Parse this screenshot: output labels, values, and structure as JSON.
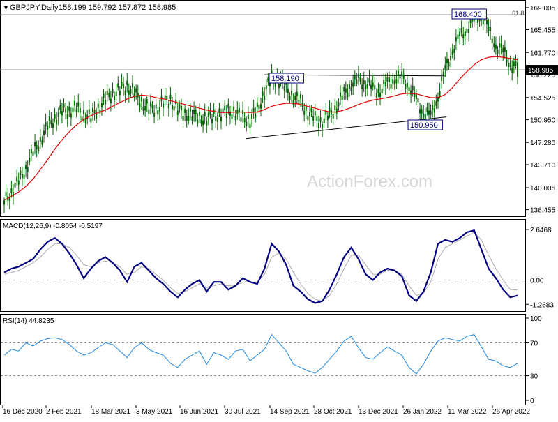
{
  "header": {
    "symbol_label": "GBPJPY,Daily",
    "ohlc_text": "158.199 159.792 157.872 158.985",
    "watermark": "ActionForex.com"
  },
  "colors": {
    "candle": "#006400",
    "ma": "#e00000",
    "macd": "#000080",
    "signal": "#aaaaaa",
    "rsi": "#1e88e5",
    "trendline": "#000000",
    "label_border": "#000080",
    "price_tag_bg": "#000000",
    "price_tag_text": "#ffffff"
  },
  "chart_data": [
    {
      "type": "candlestick",
      "title": "GBPJPY,Daily",
      "ohlc_last": {
        "open": 158.199,
        "high": 159.792,
        "low": 157.872,
        "close": 158.985
      },
      "ylim": [
        135.4,
        170.0
      ],
      "y_ticks": [
        169.005,
        165.455,
        161.77,
        158.22,
        154.525,
        150.95,
        147.28,
        143.71,
        140.005,
        136.455
      ],
      "current_price_tag": "158.985",
      "x_labels": [
        "16 Dec 2020",
        "2 Feb 2021",
        "18 Mar 2021",
        "3 May 2021",
        "16 Jun 2021",
        "30 Jul 2021",
        "14 Sep 2021",
        "28 Oct 2021",
        "13 Dec 2021",
        "26 Jan 2022",
        "11 Mar 2022",
        "26 Apr 2022"
      ],
      "annotations": [
        {
          "label": "168.400",
          "value": 168.4
        },
        {
          "label": "158.190",
          "value": 158.19
        },
        {
          "label": "150.950",
          "value": 150.95
        },
        {
          "label": "61.8",
          "value": 167.9
        }
      ],
      "series": [
        {
          "name": "price",
          "values": [
            137.6,
            139.5,
            140.9,
            143.2,
            145.6,
            147.6,
            149.9,
            151.2,
            152.3,
            152.4,
            152.8,
            151.8,
            151.3,
            152.7,
            154.3,
            155.0,
            155.8,
            156.3,
            155.4,
            153.6,
            152.9,
            152.4,
            153.9,
            153.9,
            152.8,
            151.6,
            151.9,
            151.1,
            151.2,
            151.4,
            151.9,
            152.3,
            152.1,
            151.3,
            150.8,
            152.5,
            155.4,
            157.6,
            157.3,
            156.0,
            154.6,
            153.8,
            152.1,
            151.1,
            150.7,
            151.6,
            153.2,
            155.0,
            156.7,
            157.2,
            157.0,
            155.8,
            155.7,
            156.7,
            157.6,
            157.7,
            156.5,
            154.0,
            152.2,
            151.5,
            154.8,
            158.9,
            162.2,
            164.3,
            165.7,
            166.8,
            168.1,
            165.3,
            163.0,
            161.9,
            160.0,
            158.99
          ]
        },
        {
          "name": "moving average",
          "values": [
            138.0,
            138.6,
            139.3,
            140.2,
            141.4,
            142.9,
            144.5,
            146.2,
            147.7,
            149.0,
            150.1,
            151.0,
            151.6,
            152.1,
            152.5,
            153.1,
            153.7,
            154.3,
            154.7,
            154.9,
            154.8,
            154.5,
            154.3,
            154.0,
            153.7,
            153.4,
            153.1,
            152.8,
            152.5,
            152.3,
            152.1,
            152.1,
            152.2,
            152.2,
            152.1,
            152.2,
            152.6,
            153.1,
            153.4,
            153.6,
            153.6,
            153.4,
            153.1,
            152.8,
            152.5,
            152.2,
            152.2,
            152.5,
            152.9,
            153.4,
            153.8,
            154.1,
            154.3,
            154.5,
            154.8,
            155.1,
            155.2,
            155.1,
            154.8,
            154.5,
            154.5,
            155.0,
            156.1,
            157.5,
            158.7,
            159.8,
            160.6,
            161.0,
            161.1,
            161.0,
            160.8,
            160.6
          ]
        }
      ]
    },
    {
      "type": "line",
      "title": "MACD(12,26,9) -0.8054 -0.5197",
      "ylim": [
        -1.55,
        2.9
      ],
      "y_ticks": [
        2.6468,
        0.0,
        -1.2683
      ],
      "series": [
        {
          "name": "MACD",
          "values": [
            0.4,
            0.6,
            0.7,
            0.9,
            1.1,
            1.6,
            2.0,
            2.2,
            1.9,
            1.4,
            0.8,
            0.1,
            0.6,
            1.0,
            1.2,
            0.9,
            0.5,
            -0.1,
            0.7,
            0.9,
            0.5,
            0.1,
            -0.2,
            -0.6,
            -0.9,
            -0.5,
            -0.2,
            0.0,
            -0.6,
            -0.1,
            -0.1,
            -0.5,
            -0.3,
            0.1,
            -0.1,
            -0.2,
            0.6,
            1.9,
            1.5,
            0.8,
            -0.3,
            -0.6,
            -1.0,
            -1.2,
            -1.1,
            -0.5,
            0.3,
            1.2,
            1.7,
            1.1,
            0.3,
            0.0,
            0.4,
            0.6,
            0.5,
            0.2,
            -0.8,
            -1.1,
            -0.6,
            0.4,
            1.9,
            2.1,
            2.0,
            2.2,
            2.5,
            2.6,
            1.6,
            0.6,
            0.1,
            -0.5,
            -0.9,
            -0.81
          ]
        },
        {
          "name": "Signal",
          "values": [
            0.3,
            0.4,
            0.5,
            0.7,
            0.9,
            1.2,
            1.6,
            1.9,
            1.9,
            1.7,
            1.3,
            0.8,
            0.7,
            0.9,
            1.0,
            0.9,
            0.7,
            0.3,
            0.4,
            0.7,
            0.6,
            0.3,
            0.0,
            -0.4,
            -0.7,
            -0.6,
            -0.4,
            -0.2,
            -0.4,
            -0.3,
            -0.2,
            -0.3,
            -0.3,
            -0.1,
            -0.1,
            -0.1,
            0.3,
            1.2,
            1.4,
            1.1,
            0.4,
            -0.2,
            -0.7,
            -1.0,
            -1.1,
            -0.8,
            -0.2,
            0.6,
            1.3,
            1.3,
            0.8,
            0.3,
            0.3,
            0.5,
            0.5,
            0.3,
            -0.3,
            -0.8,
            -0.7,
            -0.1,
            1.1,
            1.7,
            1.9,
            2.1,
            2.3,
            2.5,
            2.1,
            1.3,
            0.6,
            0.0,
            -0.5,
            -0.52
          ]
        }
      ]
    },
    {
      "type": "line",
      "title": "RSI(14) 44.8235",
      "ylim": [
        0,
        100
      ],
      "y_ticks": [
        100,
        70,
        30,
        0
      ],
      "reference_lines": [
        70,
        30
      ],
      "series": [
        {
          "name": "RSI",
          "values": [
            55,
            62,
            60,
            70,
            66,
            72,
            75,
            76,
            74,
            68,
            60,
            55,
            58,
            64,
            70,
            68,
            60,
            52,
            64,
            70,
            62,
            58,
            55,
            45,
            40,
            50,
            55,
            60,
            44,
            58,
            55,
            50,
            60,
            62,
            48,
            55,
            62,
            80,
            70,
            60,
            44,
            40,
            36,
            33,
            40,
            50,
            60,
            72,
            78,
            64,
            52,
            50,
            58,
            65,
            60,
            55,
            40,
            32,
            44,
            60,
            72,
            76,
            74,
            72,
            78,
            80,
            65,
            50,
            48,
            42,
            40,
            45
          ]
        }
      ]
    }
  ]
}
